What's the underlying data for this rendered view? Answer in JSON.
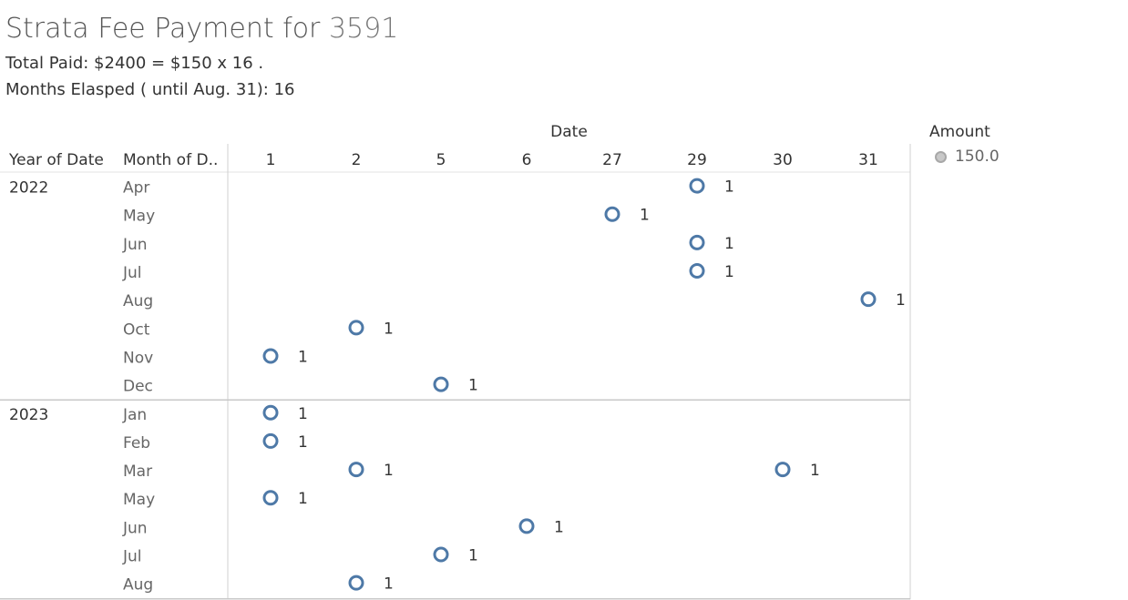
{
  "header": {
    "title_prefix": "Strata Fee Payment for",
    "unit": "3591",
    "total_line": "Total Paid:  $2400  =  $150 x 16 .",
    "months_line": "Months Elasped ( until Aug. 31): 16"
  },
  "legend": {
    "title": "Amount",
    "items": [
      {
        "label": "150.0",
        "color": "#c8c8c8"
      }
    ]
  },
  "chart_data": {
    "type": "scatter",
    "title": "Strata Fee Payment for 3591",
    "column_header": "Date",
    "row_headers": [
      "Year of Date",
      "Month of D.."
    ],
    "columns": [
      "1",
      "2",
      "5",
      "6",
      "27",
      "29",
      "30",
      "31"
    ],
    "rows": [
      {
        "year": "2022",
        "month": "Apr",
        "day": "29",
        "count": 1
      },
      {
        "year": "",
        "month": "May",
        "day": "27",
        "count": 1
      },
      {
        "year": "",
        "month": "Jun",
        "day": "29",
        "count": 1
      },
      {
        "year": "",
        "month": "Jul",
        "day": "29",
        "count": 1
      },
      {
        "year": "",
        "month": "Aug",
        "day": "31",
        "count": 1
      },
      {
        "year": "",
        "month": "Oct",
        "day": "2",
        "count": 1
      },
      {
        "year": "",
        "month": "Nov",
        "day": "1",
        "count": 1
      },
      {
        "year": "",
        "month": "Dec",
        "day": "5",
        "count": 1
      },
      {
        "year": "2023",
        "month": "Jan",
        "day": "1",
        "count": 1
      },
      {
        "year": "",
        "month": "Feb",
        "day": "1",
        "count": 1
      },
      {
        "year": "",
        "month": "Mar",
        "day": "2",
        "count": 1
      },
      {
        "year": "",
        "month": "Mar",
        "day": "30",
        "count": 1
      },
      {
        "year": "",
        "month": "May",
        "day": "1",
        "count": 1
      },
      {
        "year": "",
        "month": "Jun",
        "day": "6",
        "count": 1
      },
      {
        "year": "",
        "month": "Jul",
        "day": "5",
        "count": 1
      },
      {
        "year": "",
        "month": "Aug",
        "day": "2",
        "count": 1
      }
    ],
    "mark_color": "#4e79a7",
    "amount": 150.0
  }
}
